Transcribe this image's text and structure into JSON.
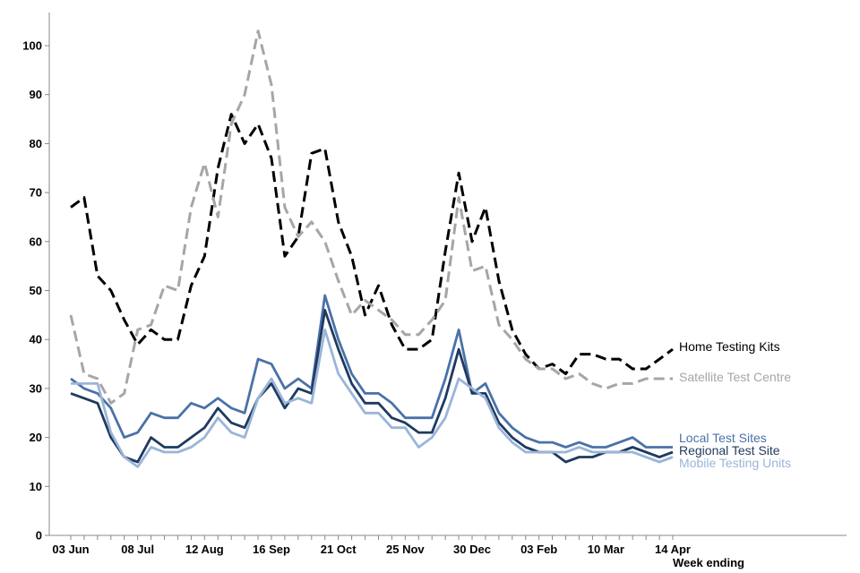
{
  "chart_data": {
    "type": "line",
    "xlabel": "Week ending",
    "ylabel": "",
    "ylim": [
      0,
      105
    ],
    "yticks": [
      0,
      10,
      20,
      30,
      40,
      50,
      60,
      70,
      80,
      90,
      100
    ],
    "grid": false,
    "legend": "inline labels at right end of each line",
    "x_count": 46,
    "x_tick_labels": [
      {
        "index": 0,
        "label": "03 Jun"
      },
      {
        "index": 5,
        "label": "08 Jul"
      },
      {
        "index": 10,
        "label": "12 Aug"
      },
      {
        "index": 15,
        "label": "16 Sep"
      },
      {
        "index": 20,
        "label": "21 Oct"
      },
      {
        "index": 25,
        "label": "25 Nov"
      },
      {
        "index": 30,
        "label": "30 Dec"
      },
      {
        "index": 35,
        "label": "03 Feb"
      },
      {
        "index": 40,
        "label": "10 Mar"
      },
      {
        "index": 45,
        "label": "14 Apr"
      }
    ],
    "series": [
      {
        "name": "Home Testing Kits",
        "color": "#000000",
        "dashed": true,
        "values": [
          67,
          69,
          53,
          50,
          44,
          39,
          42,
          40,
          40,
          51,
          57,
          75,
          86,
          80,
          84,
          77,
          57,
          61,
          78,
          79,
          64,
          57,
          45,
          51,
          43,
          38,
          38,
          40,
          58,
          74,
          60,
          67,
          52,
          42,
          37,
          34,
          35,
          33,
          37,
          37,
          36,
          36,
          34,
          34,
          36,
          38
        ]
      },
      {
        "name": "Satellite Test Centre",
        "color": "#a6a6a6",
        "dashed": true,
        "values": [
          45,
          33,
          32,
          27,
          29,
          42,
          43,
          51,
          50,
          67,
          76,
          65,
          84,
          90,
          103,
          92,
          67,
          61,
          64,
          60,
          52,
          45,
          48,
          46,
          44,
          41,
          41,
          44,
          48,
          69,
          54,
          55,
          43,
          40,
          36,
          34,
          34,
          32,
          33,
          31,
          30,
          31,
          31,
          32,
          32,
          32
        ]
      },
      {
        "name": "Local Test Sites",
        "color": "#4a72a8",
        "dashed": false,
        "values": [
          32,
          30,
          29,
          26,
          20,
          21,
          25,
          24,
          24,
          27,
          26,
          28,
          26,
          25,
          36,
          35,
          30,
          32,
          30,
          49,
          40,
          33,
          29,
          29,
          27,
          24,
          24,
          24,
          32,
          42,
          29,
          31,
          25,
          22,
          20,
          19,
          19,
          18,
          19,
          18,
          18,
          19,
          20,
          18,
          18,
          18
        ]
      },
      {
        "name": "Regional Test Site",
        "color": "#1f3a5f",
        "dashed": false,
        "values": [
          29,
          28,
          27,
          20,
          16,
          15,
          20,
          18,
          18,
          20,
          22,
          26,
          23,
          22,
          28,
          31,
          26,
          30,
          29,
          46,
          38,
          31,
          27,
          27,
          24,
          23,
          21,
          21,
          28,
          38,
          29,
          29,
          23,
          20,
          18,
          17,
          17,
          15,
          16,
          16,
          17,
          17,
          18,
          17,
          16,
          17
        ]
      },
      {
        "name": "Mobile Testing Units",
        "color": "#9ab5d9",
        "dashed": false,
        "values": [
          31,
          31,
          31,
          21,
          16,
          14,
          18,
          17,
          17,
          18,
          20,
          24,
          21,
          20,
          28,
          32,
          27,
          28,
          27,
          42,
          33,
          29,
          25,
          25,
          22,
          22,
          18,
          20,
          24,
          32,
          30,
          28,
          22,
          19,
          17,
          17,
          17,
          17,
          18,
          17,
          17,
          17,
          17,
          16,
          15,
          16
        ]
      }
    ]
  }
}
